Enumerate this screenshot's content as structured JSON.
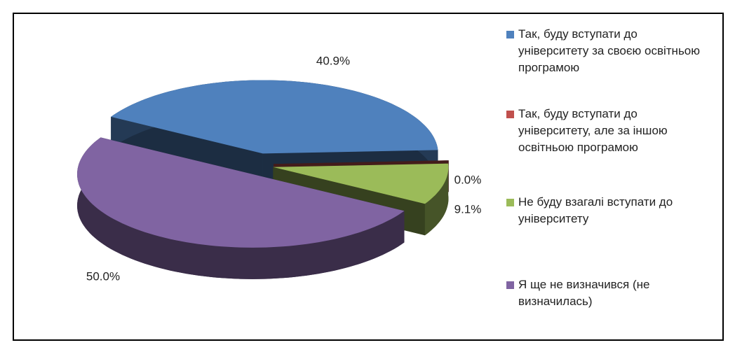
{
  "chart_data": {
    "type": "pie",
    "categories": [
      "Так, буду вступати до університету за своєю освітньою програмою",
      "Так, буду вступати до університету, але за іншою освітньою програмою",
      "Не буду взагалі вступати до університету",
      "Я ще не визначився (не визначилась)"
    ],
    "values": [
      40.9,
      0.0,
      9.1,
      50.0
    ],
    "value_labels": [
      "40.9%",
      "0.0%",
      "9.1%",
      "50.0%"
    ],
    "colors": [
      "#4f81bd",
      "#c0504d",
      "#9bbb59",
      "#8064a2"
    ],
    "legend": "right"
  }
}
